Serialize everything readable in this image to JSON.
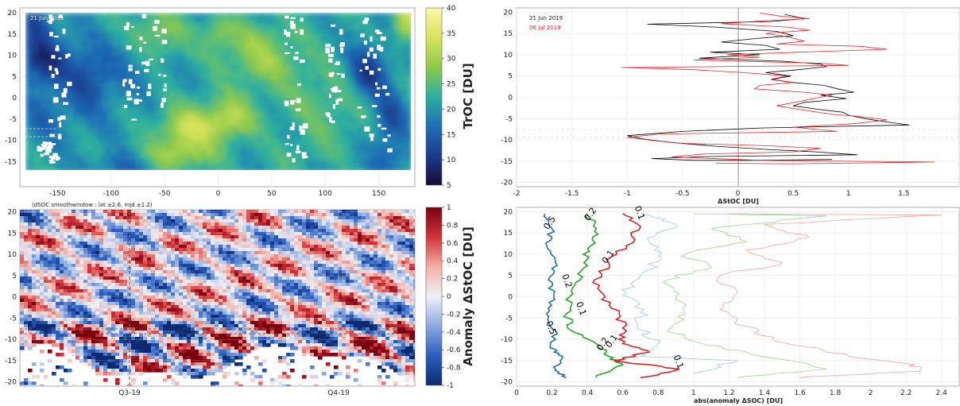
{
  "chart_data": [
    {
      "type": "heatmap",
      "panel": "top-left",
      "annotation": "21 Jun 2019",
      "x_ticks": [
        -150,
        -100,
        -50,
        0,
        50,
        100,
        150
      ],
      "y_ticks": [
        -15,
        -10,
        -5,
        0,
        5,
        10,
        15,
        20
      ],
      "xlim": [
        -180,
        180
      ],
      "ylim": [
        -17,
        20
      ],
      "colorbar": {
        "label": "TrOC [DU]",
        "ticks": [
          5,
          10,
          15,
          20,
          25,
          30,
          35,
          40
        ],
        "range": [
          5,
          40
        ]
      },
      "colors": [
        "#150b34",
        "#1d3b8f",
        "#1f6fb7",
        "#2bb0a0",
        "#8dca4a",
        "#d8e35a",
        "#fdf7a8"
      ]
    },
    {
      "type": "line",
      "panel": "top-right",
      "xlabel": "ΔStOC [DU]",
      "x_ticks": [
        -2,
        -1.5,
        -1,
        -0.5,
        0,
        0.5,
        1,
        1.5,
        2
      ],
      "y_ticks": [
        -20,
        -15,
        -10,
        -5,
        0,
        5,
        10,
        15,
        20
      ],
      "xlim": [
        -2,
        2
      ],
      "ylim": [
        -21,
        21
      ],
      "grid": true,
      "legend_position": "top-left",
      "series": [
        {
          "name": "21 Jun 2019",
          "color": "#000000",
          "points": [
            [
              0.42,
              19.5
            ],
            [
              0.6,
              18.5
            ],
            [
              0.3,
              17.8
            ],
            [
              -0.82,
              17.2
            ],
            [
              -0.2,
              16.5
            ],
            [
              0.35,
              15.5
            ],
            [
              0.5,
              14.5
            ],
            [
              0.15,
              13.8
            ],
            [
              -0.15,
              13
            ],
            [
              0.25,
              12.2
            ],
            [
              0.38,
              11.3
            ],
            [
              -0.25,
              10.6
            ],
            [
              0.2,
              10
            ],
            [
              -0.35,
              9.2
            ],
            [
              0.4,
              8.5
            ],
            [
              0.75,
              7.8
            ],
            [
              0.8,
              7.2
            ],
            [
              0.55,
              6.5
            ],
            [
              0.25,
              5.8
            ],
            [
              0.48,
              5
            ],
            [
              0.3,
              4.2
            ],
            [
              0.5,
              3.5
            ],
            [
              0.78,
              2.8
            ],
            [
              0.9,
              2
            ],
            [
              1.05,
              1.2
            ],
            [
              0.75,
              0.5
            ],
            [
              0.98,
              -0.3
            ],
            [
              0.6,
              -1.2
            ],
            [
              0.5,
              -2
            ],
            [
              0.72,
              -2.8
            ],
            [
              0.95,
              -3.5
            ],
            [
              1.0,
              -4.2
            ],
            [
              1.15,
              -5
            ],
            [
              1.35,
              -5.8
            ],
            [
              1.55,
              -6.5
            ],
            [
              0.2,
              -7.2
            ],
            [
              -0.5,
              -8
            ],
            [
              -1.0,
              -9
            ],
            [
              -0.85,
              -9.8
            ],
            [
              -0.6,
              -10.6
            ],
            [
              -0.2,
              -11.5
            ],
            [
              0.3,
              -12.3
            ],
            [
              0.7,
              -12.8
            ],
            [
              1.08,
              -13.5
            ],
            [
              -0.25,
              -13.9
            ],
            [
              -0.78,
              -14.4
            ],
            [
              -0.4,
              -14.8
            ],
            [
              0.1,
              -14.8
            ],
            [
              0.5,
              -14.7
            ],
            [
              0.85,
              -14.6
            ]
          ]
        },
        {
          "name": "06 Jul 2019",
          "color": "#e8262a",
          "points": [
            [
              0.2,
              19.8
            ],
            [
              0.4,
              19
            ],
            [
              0.65,
              18.5
            ],
            [
              0.25,
              18
            ],
            [
              -0.15,
              17.3
            ],
            [
              0.45,
              16.5
            ],
            [
              0.65,
              15.8
            ],
            [
              0.25,
              15
            ],
            [
              0.45,
              14.2
            ],
            [
              0.6,
              13.2
            ],
            [
              0.35,
              12.5
            ],
            [
              1.1,
              12
            ],
            [
              1.35,
              11.3
            ],
            [
              0.55,
              10.6
            ],
            [
              -0.1,
              10
            ],
            [
              0.2,
              9.4
            ],
            [
              -0.4,
              8.8
            ],
            [
              0.75,
              8
            ],
            [
              1.0,
              7.5
            ],
            [
              -1.05,
              7
            ],
            [
              -0.4,
              6.5
            ],
            [
              0.05,
              5.8
            ],
            [
              0.45,
              5
            ],
            [
              0.3,
              4.3
            ],
            [
              0.5,
              3.5
            ],
            [
              0.2,
              2.8
            ],
            [
              0.15,
              2
            ],
            [
              0.6,
              1.2
            ],
            [
              0.85,
              0.5
            ],
            [
              0.7,
              -0.2
            ],
            [
              0.55,
              -1
            ],
            [
              0.35,
              -2
            ],
            [
              0.6,
              -3
            ],
            [
              0.85,
              -4
            ],
            [
              1.1,
              -4.5
            ],
            [
              1.35,
              -5.3
            ],
            [
              1.05,
              -6.2
            ],
            [
              0.5,
              -7
            ],
            [
              0.9,
              -8
            ],
            [
              -0.7,
              -8.6
            ],
            [
              -1.0,
              -9.4
            ],
            [
              -0.75,
              -10.2
            ],
            [
              -0.5,
              -10.8
            ],
            [
              0.3,
              -11.4
            ],
            [
              0.75,
              -12
            ],
            [
              0.5,
              -12.8
            ],
            [
              -0.3,
              -13.3
            ],
            [
              -0.6,
              -14
            ],
            [
              0.2,
              -14.8
            ],
            [
              1.78,
              -15.2
            ],
            [
              0.5,
              -15.6
            ],
            [
              -0.2,
              -15.5
            ]
          ]
        }
      ]
    },
    {
      "type": "heatmap",
      "panel": "bottom-left",
      "annotation": "(dSOC smoothwindow : lat ±2.6, mjd ±1.2)",
      "x_ticks": [
        "Q3-19",
        "Q4-19"
      ],
      "y_ticks": [
        -20,
        -15,
        -10,
        -5,
        0,
        5,
        10,
        15,
        20
      ],
      "ylim": [
        -21,
        20.5
      ],
      "colorbar": {
        "label": "Anomaly ΔStOC [DU]",
        "ticks": [
          -1,
          -0.8,
          -0.6,
          -0.4,
          -0.2,
          0,
          0.2,
          0.4,
          0.6,
          0.8,
          1
        ],
        "range": [
          -1,
          1
        ]
      },
      "colors": [
        "#0d2a6e",
        "#2a5ec0",
        "#8ca9e0",
        "#eef0f8",
        "#f2b0a5",
        "#d2333a",
        "#7a0010"
      ]
    },
    {
      "type": "line",
      "panel": "bottom-right",
      "xlabel": "abs(anomaly ΔSOC) [DU]",
      "x_ticks": [
        0,
        0.2,
        0.4,
        0.6,
        0.8,
        1,
        1.2,
        1.4,
        1.6,
        1.8,
        2,
        2.2,
        2.4
      ],
      "y_ticks": [
        -20,
        -15,
        -10,
        -5,
        0,
        5,
        10,
        15,
        20
      ],
      "xlim": [
        0,
        2.5
      ],
      "ylim": [
        -21,
        21
      ],
      "grid": true,
      "contour_labels": [
        "0.5",
        "0.5",
        "0.2",
        "0.2",
        "0.2",
        "0.1",
        "0.1",
        "0.1",
        "0.1",
        "0.1"
      ],
      "series": [
        {
          "color": "#1f6fb4",
          "width": 1.6,
          "points": [
            [
              0.16,
              19.5
            ],
            [
              0.2,
              16
            ],
            [
              0.17,
              12
            ],
            [
              0.22,
              8
            ],
            [
              0.18,
              4
            ],
            [
              0.21,
              0
            ],
            [
              0.17,
              -4
            ],
            [
              0.22,
              -8
            ],
            [
              0.19,
              -12
            ],
            [
              0.26,
              -14
            ],
            [
              0.22,
              -17
            ],
            [
              0.28,
              -19
            ]
          ]
        },
        {
          "color": "#2ba02b",
          "width": 1.6,
          "points": [
            [
              0.4,
              19.5
            ],
            [
              0.45,
              16
            ],
            [
              0.42,
              12
            ],
            [
              0.38,
              8
            ],
            [
              0.36,
              4
            ],
            [
              0.3,
              0
            ],
            [
              0.28,
              -4
            ],
            [
              0.31,
              -8
            ],
            [
              0.45,
              -11
            ],
            [
              0.52,
              -14
            ],
            [
              0.6,
              -16
            ],
            [
              0.45,
              -19
            ]
          ]
        },
        {
          "color": "#d62728",
          "width": 1.6,
          "points": [
            [
              0.6,
              19.5
            ],
            [
              0.7,
              16.5
            ],
            [
              0.62,
              12
            ],
            [
              0.52,
              8
            ],
            [
              0.44,
              4
            ],
            [
              0.5,
              0
            ],
            [
              0.58,
              -4
            ],
            [
              0.62,
              -8
            ],
            [
              0.6,
              -11
            ],
            [
              0.75,
              -13
            ],
            [
              0.55,
              -15
            ],
            [
              0.92,
              -17
            ],
            [
              0.7,
              -19
            ]
          ]
        },
        {
          "color": "#9ec7e8",
          "width": 0.8,
          "points": [
            [
              0.7,
              19.5
            ],
            [
              0.9,
              17
            ],
            [
              0.75,
              13
            ],
            [
              0.82,
              9
            ],
            [
              0.7,
              5
            ],
            [
              0.62,
              1
            ],
            [
              0.72,
              -3
            ],
            [
              0.68,
              -7
            ],
            [
              0.8,
              -11
            ],
            [
              0.7,
              -14
            ],
            [
              1.25,
              -15
            ],
            [
              1.0,
              -18
            ]
          ]
        },
        {
          "color": "#9bd58a",
          "width": 0.8,
          "points": [
            [
              1.0,
              19.5
            ],
            [
              1.75,
              19
            ],
            [
              1.1,
              16
            ],
            [
              1.3,
              13
            ],
            [
              0.95,
              10
            ],
            [
              1.1,
              7
            ],
            [
              0.85,
              4
            ],
            [
              0.9,
              0
            ],
            [
              0.95,
              -4
            ],
            [
              0.85,
              -8
            ],
            [
              1.05,
              -11
            ],
            [
              1.3,
              -13
            ],
            [
              1.75,
              -17
            ],
            [
              1.25,
              -19
            ]
          ]
        },
        {
          "color": "#f4a19e",
          "width": 0.8,
          "points": [
            [
              1.2,
              19.5
            ],
            [
              2.4,
              19.2
            ],
            [
              1.4,
              17
            ],
            [
              1.65,
              14
            ],
            [
              1.3,
              11
            ],
            [
              1.5,
              8
            ],
            [
              1.15,
              5
            ],
            [
              1.25,
              1
            ],
            [
              1.15,
              -3
            ],
            [
              1.3,
              -7
            ],
            [
              1.45,
              -10
            ],
            [
              1.75,
              -13
            ],
            [
              2.25,
              -16
            ],
            [
              2.28,
              -17.5
            ],
            [
              1.6,
              -19
            ]
          ]
        }
      ]
    }
  ]
}
